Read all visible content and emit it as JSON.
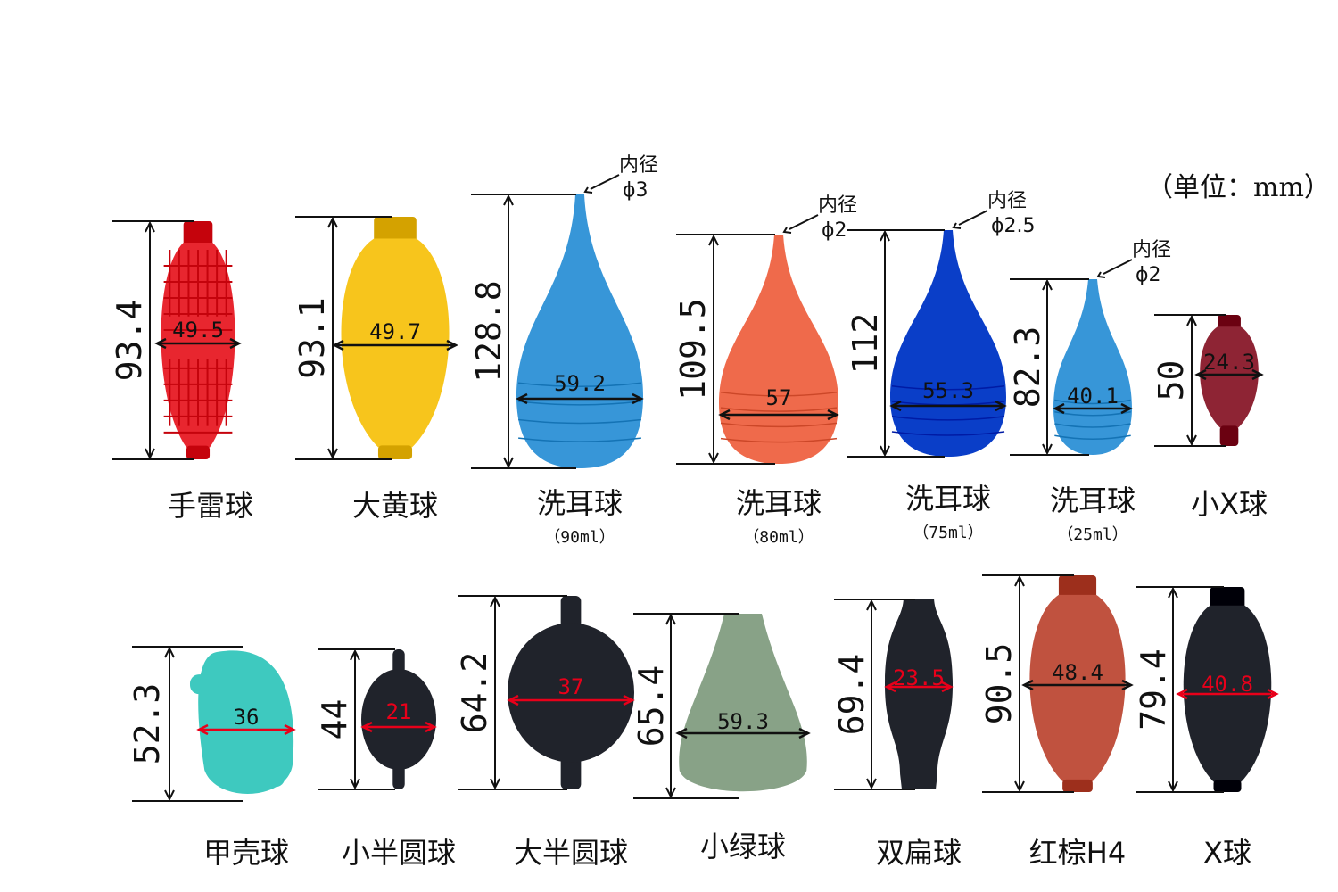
{
  "unit_note": "（单位：mm）",
  "colors": {
    "red": "#e8262f",
    "yellow": "#f7c51c",
    "sky_blue": "#3796d8",
    "orange": "#ef6a4b",
    "royal_blue": "#0a3ec8",
    "maroon": "#8e2434",
    "teal": "#3ec9bf",
    "black": "#20232b",
    "sage": "#88a287",
    "terracotta": "#c0523f"
  },
  "bulbs": [
    {
      "name": "手雷球",
      "sub": "",
      "height": "93.4",
      "width": "49.5",
      "color": "red",
      "shape": "grenade",
      "inner": []
    },
    {
      "name": "大黄球",
      "sub": "",
      "height": "93.1",
      "width": "49.7",
      "color": "yellow",
      "shape": "oval_neck",
      "inner": []
    },
    {
      "name": "洗耳球",
      "sub": "（90ml）",
      "height": "128.8",
      "width": "59.2",
      "color": "sky_blue",
      "shape": "dropper",
      "inner": [
        "内径",
        "ϕ3"
      ]
    },
    {
      "name": "洗耳球",
      "sub": "（80ml）",
      "height": "109.5",
      "width": "57",
      "color": "orange",
      "shape": "dropper",
      "inner": [
        "内径",
        "ϕ2"
      ]
    },
    {
      "name": "洗耳球",
      "sub": "（75ml）",
      "height": "112",
      "width": "55.3",
      "color": "royal_blue",
      "shape": "dropper",
      "inner": [
        "内径",
        "ϕ2.5"
      ]
    },
    {
      "name": "洗耳球",
      "sub": "（25ml）",
      "height": "82.3",
      "width": "40.1",
      "color": "sky_blue",
      "shape": "dropper",
      "inner": [
        "内径",
        "ϕ2"
      ]
    },
    {
      "name": "小X球",
      "sub": "",
      "height": "50",
      "width": "24.3",
      "color": "maroon",
      "shape": "small_oval",
      "inner": []
    },
    {
      "name": "甲壳球",
      "sub": "",
      "height": "52.3",
      "width": "36",
      "color": "teal",
      "shape": "shell",
      "inner": []
    },
    {
      "name": "小半圆球",
      "sub": "",
      "height": "44",
      "width": "21",
      "color": "black",
      "shape": "sphere_tubes",
      "inner": []
    },
    {
      "name": "大半圆球",
      "sub": "",
      "height": "64.2",
      "width": "37",
      "color": "black",
      "shape": "sphere_tubes",
      "inner": []
    },
    {
      "name": "小绿球",
      "sub": "",
      "height": "65.4",
      "width": "59.3",
      "color": "sage",
      "shape": "cone",
      "inner": []
    },
    {
      "name": "双扁球",
      "sub": "",
      "height": "69.4",
      "width": "23.5",
      "color": "black",
      "shape": "flat",
      "inner": []
    },
    {
      "name": "红棕H4",
      "sub": "",
      "height": "90.5",
      "width": "48.4",
      "color": "terracotta",
      "shape": "oval_neck",
      "inner": []
    },
    {
      "name": "X球",
      "sub": "",
      "height": "79.4",
      "width": "40.8",
      "color": "black",
      "shape": "oval_neck",
      "inner": []
    }
  ]
}
